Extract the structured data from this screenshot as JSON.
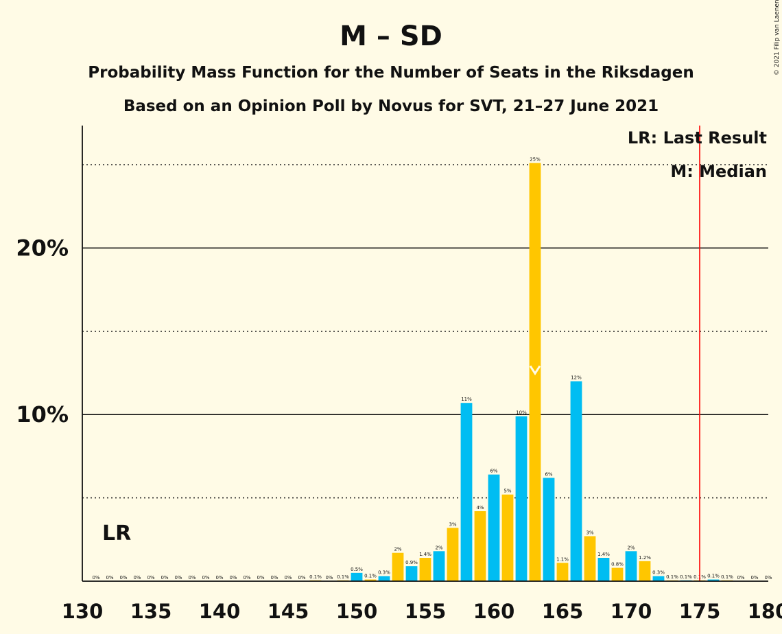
{
  "chart_data": {
    "type": "bar",
    "title": "M – SD",
    "subtitle_1": "Probability Mass Function for the Number of Seats in the Riksdagen",
    "subtitle_2": "Based on an Opinion Poll by Novus for SVT, 21–27 June 2021",
    "copyright": "© 2021 Filip van Laenen",
    "x_range": [
      130,
      180
    ],
    "ylim": [
      0,
      27.5
    ],
    "x_ticks": [
      "130",
      "135",
      "140",
      "145",
      "150",
      "155",
      "160",
      "165",
      "170",
      "175",
      "180"
    ],
    "y_ticks": [
      {
        "value": 10,
        "label": "10%"
      },
      {
        "value": 20,
        "label": "20%"
      }
    ],
    "gridlines_solid": [
      10,
      20
    ],
    "gridlines_dotted": [
      5,
      15,
      25
    ],
    "colors": {
      "blue": "#00BDF2",
      "yellow": "#FFC600",
      "last_result_line": "#FF0000",
      "background": "#FFFBE6"
    },
    "bars": [
      {
        "seat": 131,
        "value": 0,
        "label": "0%",
        "color": "yellow"
      },
      {
        "seat": 132,
        "value": 0,
        "label": "0%",
        "color": "blue"
      },
      {
        "seat": 133,
        "value": 0,
        "label": "0%",
        "color": "yellow"
      },
      {
        "seat": 134,
        "value": 0,
        "label": "0%",
        "color": "blue"
      },
      {
        "seat": 135,
        "value": 0,
        "label": "0%",
        "color": "yellow"
      },
      {
        "seat": 136,
        "value": 0,
        "label": "0%",
        "color": "blue"
      },
      {
        "seat": 137,
        "value": 0,
        "label": "0%",
        "color": "yellow"
      },
      {
        "seat": 138,
        "value": 0,
        "label": "0%",
        "color": "blue"
      },
      {
        "seat": 139,
        "value": 0,
        "label": "0%",
        "color": "yellow"
      },
      {
        "seat": 140,
        "value": 0,
        "label": "0%",
        "color": "blue"
      },
      {
        "seat": 141,
        "value": 0,
        "label": "0%",
        "color": "yellow"
      },
      {
        "seat": 142,
        "value": 0,
        "label": "0%",
        "color": "blue"
      },
      {
        "seat": 143,
        "value": 0,
        "label": "0%",
        "color": "yellow"
      },
      {
        "seat": 144,
        "value": 0,
        "label": "0%",
        "color": "blue"
      },
      {
        "seat": 145,
        "value": 0,
        "label": "0%",
        "color": "yellow"
      },
      {
        "seat": 146,
        "value": 0,
        "label": "0%",
        "color": "blue"
      },
      {
        "seat": 147,
        "value": 0.05,
        "label": "0.1%",
        "color": "yellow"
      },
      {
        "seat": 148,
        "value": 0,
        "label": "0%",
        "color": "blue"
      },
      {
        "seat": 149,
        "value": 0.05,
        "label": "0.1%",
        "color": "yellow"
      },
      {
        "seat": 150,
        "value": 0.5,
        "label": "0.5%",
        "color": "blue"
      },
      {
        "seat": 151,
        "value": 0.1,
        "label": "0.1%",
        "color": "yellow"
      },
      {
        "seat": 152,
        "value": 0.3,
        "label": "0.3%",
        "color": "blue"
      },
      {
        "seat": 153,
        "value": 1.7,
        "label": "2%",
        "color": "yellow"
      },
      {
        "seat": 154,
        "value": 0.9,
        "label": "0.9%",
        "color": "blue"
      },
      {
        "seat": 155,
        "value": 1.4,
        "label": "1.4%",
        "color": "yellow"
      },
      {
        "seat": 156,
        "value": 1.8,
        "label": "2%",
        "color": "blue"
      },
      {
        "seat": 157,
        "value": 3.2,
        "label": "3%",
        "color": "yellow"
      },
      {
        "seat": 158,
        "value": 10.7,
        "label": "11%",
        "color": "blue"
      },
      {
        "seat": 159,
        "value": 4.2,
        "label": "4%",
        "color": "yellow"
      },
      {
        "seat": 160,
        "value": 6.4,
        "label": "6%",
        "color": "blue"
      },
      {
        "seat": 161,
        "value": 5.2,
        "label": "5%",
        "color": "yellow"
      },
      {
        "seat": 162,
        "value": 9.9,
        "label": "10%",
        "color": "blue"
      },
      {
        "seat": 163,
        "value": 25.1,
        "label": "25%",
        "color": "yellow"
      },
      {
        "seat": 164,
        "value": 6.2,
        "label": "6%",
        "color": "blue"
      },
      {
        "seat": 165,
        "value": 1.1,
        "label": "1.1%",
        "color": "yellow"
      },
      {
        "seat": 166,
        "value": 12.0,
        "label": "12%",
        "color": "blue"
      },
      {
        "seat": 167,
        "value": 2.7,
        "label": "3%",
        "color": "yellow"
      },
      {
        "seat": 168,
        "value": 1.4,
        "label": "1.4%",
        "color": "blue"
      },
      {
        "seat": 169,
        "value": 0.8,
        "label": "0.8%",
        "color": "yellow"
      },
      {
        "seat": 170,
        "value": 1.8,
        "label": "2%",
        "color": "blue"
      },
      {
        "seat": 171,
        "value": 1.2,
        "label": "1.2%",
        "color": "yellow"
      },
      {
        "seat": 172,
        "value": 0.3,
        "label": "0.3%",
        "color": "blue"
      },
      {
        "seat": 173,
        "value": 0.05,
        "label": "0.1%",
        "color": "yellow"
      },
      {
        "seat": 174,
        "value": 0.05,
        "label": "0.1%",
        "color": "blue"
      },
      {
        "seat": 175,
        "value": 0.05,
        "label": "0.1%",
        "color": "yellow"
      },
      {
        "seat": 176,
        "value": 0.1,
        "label": "0.1%",
        "color": "blue"
      },
      {
        "seat": 177,
        "value": 0.05,
        "label": "0.1%",
        "color": "yellow"
      },
      {
        "seat": 178,
        "value": 0,
        "label": "0%",
        "color": "blue"
      },
      {
        "seat": 179,
        "value": 0,
        "label": "0%",
        "color": "yellow"
      },
      {
        "seat": 180,
        "value": 0,
        "label": "0%",
        "color": "blue"
      }
    ],
    "median_seat": 163,
    "last_result_seat": 175,
    "lr_marker": "LR",
    "legend": {
      "last_result": "LR: Last Result",
      "median": "M: Median",
      "placement": "top-right"
    }
  }
}
